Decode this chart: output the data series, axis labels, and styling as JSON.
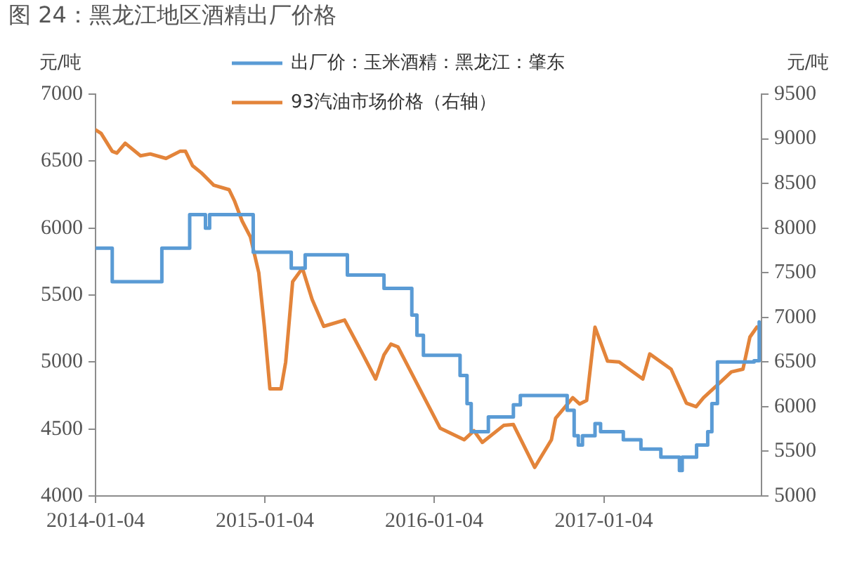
{
  "chart_data": {
    "type": "line",
    "title": "图 24：黑龙江地区酒精出厂价格",
    "ylabel": "元/吨",
    "y2label": "元/吨",
    "xlim": [
      "2014-01-04",
      "2017-12-10"
    ],
    "xticks": [
      "2014-01-04",
      "2015-01-04",
      "2016-01-04",
      "2017-01-04"
    ],
    "ylim": [
      4000,
      7000
    ],
    "yticks": [
      4000,
      4500,
      5000,
      5500,
      6000,
      6500,
      7000
    ],
    "y2lim": [
      5000,
      9500
    ],
    "y2ticks": [
      5000,
      5500,
      6000,
      6500,
      7000,
      7500,
      8000,
      8500,
      9000,
      9500
    ],
    "grid": false,
    "legend": "top",
    "series": [
      {
        "name": "出厂价：玉米酒精：黑龙江：肇东",
        "type": "step",
        "color": "#5a9bd5",
        "x": [
          "2014-01-04",
          "2014-02-09",
          "2014-05-27",
          "2014-07-26",
          "2014-08-29",
          "2014-09-07",
          "2014-12-10",
          "2015-03-02",
          "2015-04-01",
          "2015-07-01",
          "2015-09-18",
          "2015-11-17",
          "2015-11-28",
          "2015-12-12",
          "2016-02-29",
          "2016-03-15",
          "2016-03-24",
          "2016-04-30",
          "2016-06-23",
          "2016-07-08",
          "2016-10-17",
          "2016-11-01",
          "2016-11-10",
          "2016-11-19",
          "2016-12-16",
          "2016-12-28",
          "2017-02-15",
          "2017-03-25",
          "2017-05-07",
          "2017-06-16",
          "2017-06-22",
          "2017-07-23",
          "2017-08-16",
          "2017-08-25",
          "2017-09-06",
          "2017-11-24",
          "2017-12-05"
        ],
        "values": [
          5850,
          5600,
          5850,
          6100,
          6000,
          6100,
          5820,
          5700,
          5800,
          5650,
          5550,
          5350,
          5200,
          5050,
          4900,
          4690,
          4480,
          4590,
          4680,
          4750,
          4640,
          4450,
          4380,
          4450,
          4540,
          4480,
          4420,
          4350,
          4290,
          4190,
          4290,
          4380,
          4480,
          4690,
          5000,
          5010,
          5300
        ]
      },
      {
        "name": "93汽油市场价格（右轴）",
        "type": "line",
        "axis": "y2",
        "color": "#e3843a",
        "x": [
          "2014-01-04",
          "2014-01-16",
          "2014-02-09",
          "2014-02-19",
          "2014-03-09",
          "2014-04-11",
          "2014-05-02",
          "2014-06-05",
          "2014-07-05",
          "2014-07-17",
          "2014-08-01",
          "2014-08-20",
          "2014-09-16",
          "2014-10-19",
          "2014-10-31",
          "2014-11-16",
          "2014-12-04",
          "2014-12-22",
          "2015-01-03",
          "2015-01-15",
          "2015-02-08",
          "2015-02-18",
          "2015-03-05",
          "2015-03-26",
          "2015-04-16",
          "2015-05-11",
          "2015-06-25",
          "2015-07-31",
          "2015-08-31",
          "2015-09-18",
          "2015-10-03",
          "2015-10-18",
          "2015-12-09",
          "2016-01-17",
          "2016-03-09",
          "2016-03-30",
          "2016-04-17",
          "2016-06-02",
          "2016-06-23",
          "2016-08-08",
          "2016-09-13",
          "2016-09-22",
          "2016-10-13",
          "2016-10-29",
          "2016-11-13",
          "2016-11-28",
          "2016-12-16",
          "2017-01-12",
          "2017-02-06",
          "2017-03-29",
          "2017-04-13",
          "2017-05-29",
          "2017-07-01",
          "2017-07-22",
          "2017-08-07",
          "2017-08-28",
          "2017-10-06",
          "2017-10-31",
          "2017-11-15",
          "2017-11-30"
        ],
        "values": [
          9100,
          9060,
          8860,
          8840,
          8950,
          8810,
          8830,
          8780,
          8860,
          8860,
          8700,
          8620,
          8480,
          8430,
          8300,
          8080,
          7900,
          7500,
          6900,
          6200,
          6200,
          6500,
          7400,
          7550,
          7200,
          6900,
          6970,
          6620,
          6310,
          6580,
          6700,
          6670,
          6150,
          5760,
          5630,
          5730,
          5600,
          5790,
          5800,
          5320,
          5630,
          5870,
          6000,
          6100,
          6030,
          6070,
          6890,
          6510,
          6500,
          6310,
          6590,
          6420,
          6040,
          6000,
          6100,
          6200,
          6390,
          6420,
          6780,
          6890
        ]
      }
    ]
  }
}
